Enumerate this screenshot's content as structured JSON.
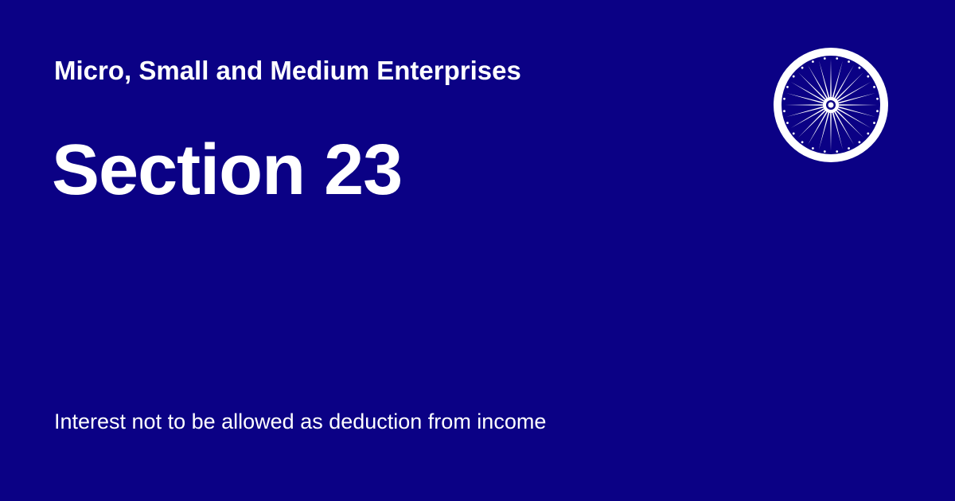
{
  "card": {
    "act_name": "Micro, Small and Medium Enterprises",
    "section_title": "Section 23",
    "section_description": "Interest not to be allowed as deduction from income",
    "emblem_icon": "ashoka-chakra-icon"
  },
  "colors": {
    "background": "#0b0185",
    "text": "#ffffff"
  }
}
